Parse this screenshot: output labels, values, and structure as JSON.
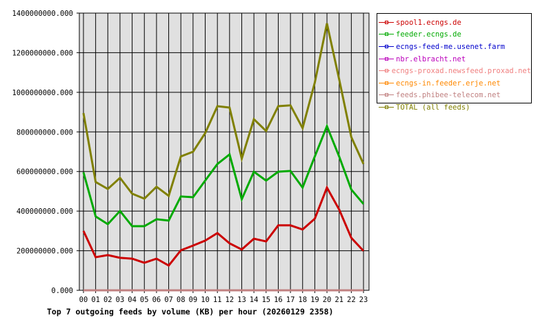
{
  "chart_data": {
    "type": "line",
    "title": "Top 7 outgoing feeds by volume (KB) per hour (20260129 2358)",
    "xlabel": "",
    "ylabel": "",
    "ylim": [
      0,
      1400000000
    ],
    "grid": true,
    "legend_position": "right",
    "y_ticks": [
      "0.000",
      "200000000.000",
      "400000000.000",
      "600000000.000",
      "800000000.000",
      "1000000000.000",
      "1200000000.000",
      "1400000000.000"
    ],
    "categories": [
      "00",
      "01",
      "02",
      "03",
      "04",
      "05",
      "06",
      "07",
      "08",
      "09",
      "10",
      "11",
      "12",
      "13",
      "14",
      "15",
      "16",
      "17",
      "18",
      "19",
      "20",
      "21",
      "22",
      "23"
    ],
    "series": [
      {
        "name": "spool1.ecngs.de",
        "color": "#cc0000",
        "values": [
          300000000,
          167000000,
          178000000,
          164000000,
          160000000,
          139000000,
          160000000,
          125000000,
          202000000,
          226000000,
          251000000,
          289000000,
          237000000,
          206000000,
          261000000,
          247000000,
          328000000,
          328000000,
          307000000,
          362000000,
          519000000,
          408000000,
          265000000,
          199000000
        ]
      },
      {
        "name": "feeder.ecngs.de",
        "color": "#00aa00",
        "values": [
          596000000,
          373000000,
          334000000,
          401000000,
          324000000,
          324000000,
          359000000,
          352000000,
          474000000,
          470000000,
          554000000,
          638000000,
          686000000,
          460000000,
          599000000,
          554000000,
          599000000,
          603000000,
          519000000,
          676000000,
          829000000,
          676000000,
          509000000,
          436000000
        ]
      },
      {
        "name": "ecngs-feed-me.usenet.farm",
        "color": "#0000cc",
        "values": [
          0,
          0,
          0,
          0,
          0,
          0,
          0,
          0,
          0,
          0,
          0,
          0,
          0,
          0,
          0,
          0,
          0,
          0,
          0,
          0,
          0,
          0,
          0,
          0
        ]
      },
      {
        "name": "nbr.elbracht.net",
        "color": "#bb00bb",
        "values": [
          0,
          0,
          0,
          0,
          0,
          0,
          0,
          0,
          0,
          0,
          0,
          0,
          0,
          0,
          0,
          0,
          0,
          0,
          0,
          0,
          0,
          0,
          0,
          0
        ]
      },
      {
        "name": "ecngs-proxad.newsfeed.proxad.net",
        "color": "#f08080",
        "values": [
          0,
          0,
          0,
          0,
          0,
          0,
          0,
          0,
          0,
          0,
          0,
          0,
          0,
          0,
          0,
          0,
          0,
          0,
          0,
          0,
          0,
          0,
          0,
          0
        ]
      },
      {
        "name": "ecngs-in.feeder.erje.net",
        "color": "#ff8800",
        "values": [
          0,
          0,
          0,
          0,
          0,
          0,
          0,
          0,
          0,
          0,
          0,
          0,
          0,
          0,
          0,
          0,
          0,
          0,
          0,
          0,
          0,
          0,
          0,
          0
        ]
      },
      {
        "name": "feeds.phibee-telecom.net",
        "color": "#c08080",
        "values": [
          0,
          0,
          0,
          0,
          0,
          0,
          0,
          0,
          0,
          0,
          0,
          0,
          0,
          0,
          0,
          0,
          0,
          0,
          0,
          0,
          0,
          0,
          0,
          0
        ]
      },
      {
        "name": "TOTAL (all feeds)",
        "color": "#808000",
        "values": [
          895000000,
          547000000,
          512000000,
          568000000,
          488000000,
          463000000,
          523000000,
          477000000,
          676000000,
          700000000,
          794000000,
          930000000,
          923000000,
          665000000,
          864000000,
          805000000,
          930000000,
          934000000,
          819000000,
          1049000000,
          1348000000,
          1066000000,
          774000000,
          638000000
        ]
      }
    ]
  },
  "legend": {
    "items": [
      {
        "label": "spool1.ecngs.de",
        "color": "#cc0000"
      },
      {
        "label": "feeder.ecngs.de",
        "color": "#00aa00"
      },
      {
        "label": "ecngs-feed-me.usenet.farm",
        "color": "#0000cc"
      },
      {
        "label": "nbr.elbracht.net",
        "color": "#bb00bb"
      },
      {
        "label": "ecngs-proxad.newsfeed.proxad.net",
        "color": "#f08080"
      },
      {
        "label": "ecngs-in.feeder.erje.net",
        "color": "#ff8800"
      },
      {
        "label": "feeds.phibee-telecom.net",
        "color": "#c08080"
      },
      {
        "label": "TOTAL (all feeds)",
        "color": "#808000"
      }
    ]
  },
  "caption": "Top 7 outgoing feeds by volume (KB) per hour (20260129 2358)"
}
